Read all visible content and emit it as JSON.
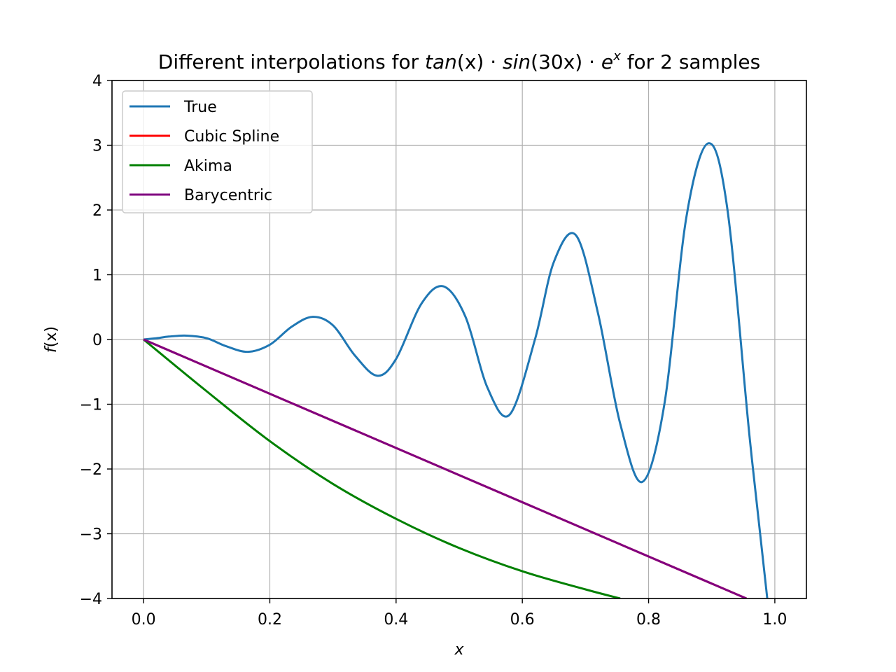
{
  "chart_data": {
    "type": "line",
    "title": {
      "prefix": "Different interpolations for ",
      "func_a": "tan",
      "arg_a": "(x)",
      "dot": " · ",
      "func_b": "sin",
      "arg_b": "(30x)",
      "exp_base": "e",
      "exp_sup": "x",
      "suffix": " for 2 samples"
    },
    "xlabel": "x",
    "ylabel": {
      "f": "f",
      "arg": "(x)"
    },
    "xlim": [
      -0.05,
      1.05
    ],
    "ylim": [
      -4,
      4
    ],
    "xticks": [
      0.0,
      0.2,
      0.4,
      0.6,
      0.8,
      1.0
    ],
    "xtick_labels": [
      "0.0",
      "0.2",
      "0.4",
      "0.6",
      "0.8",
      "1.0"
    ],
    "yticks": [
      -4,
      -3,
      -2,
      -1,
      0,
      1,
      2,
      3,
      4
    ],
    "ytick_labels": [
      "−4",
      "−3",
      "−2",
      "−1",
      "0",
      "1",
      "2",
      "3",
      "4"
    ],
    "grid": true,
    "legend_position": "upper-left",
    "series": [
      {
        "name": "True",
        "color": "#1f77b4",
        "x": [
          0,
          0.02,
          0.04,
          0.068,
          0.1,
          0.13,
          0.165,
          0.2,
          0.235,
          0.268,
          0.3,
          0.335,
          0.37,
          0.4,
          0.44,
          0.475,
          0.51,
          0.545,
          0.58,
          0.62,
          0.65,
          0.685,
          0.72,
          0.755,
          0.79,
          0.825,
          0.86,
          0.895,
          0.925,
          0.96,
          0.988
        ],
        "y": [
          0,
          0.02,
          0.045,
          0.06,
          0.02,
          -0.1,
          -0.19,
          -0.08,
          0.2,
          0.35,
          0.22,
          -0.25,
          -0.56,
          -0.3,
          0.55,
          0.82,
          0.35,
          -0.75,
          -1.16,
          0.0,
          1.2,
          1.61,
          0.4,
          -1.3,
          -2.2,
          -1.0,
          1.9,
          3.03,
          2.0,
          -1.5,
          -4.0
        ]
      },
      {
        "name": "Cubic Spline",
        "color": "#ff0000",
        "x": [
          0.0,
          0.955
        ],
        "y": [
          0.0,
          -4.0
        ]
      },
      {
        "name": "Akima",
        "color": "#008000",
        "x": [
          0,
          0.1,
          0.2,
          0.3,
          0.4,
          0.5,
          0.6,
          0.7,
          0.755
        ],
        "y": [
          0,
          -0.8,
          -1.57,
          -2.23,
          -2.77,
          -3.22,
          -3.58,
          -3.86,
          -4.0
        ]
      },
      {
        "name": "Barycentric",
        "color": "#800080",
        "x": [
          0.0,
          0.955
        ],
        "y": [
          0.0,
          -4.0
        ]
      }
    ]
  }
}
